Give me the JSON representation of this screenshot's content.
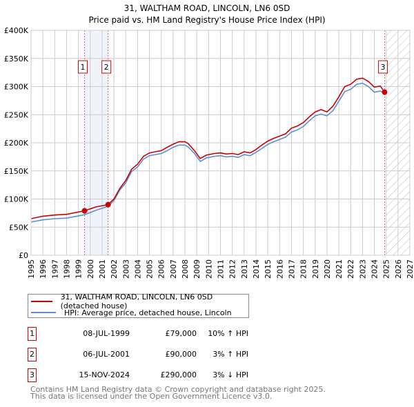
{
  "chart_data": {
    "type": "line",
    "title": "31, WALTHAM ROAD, LINCOLN, LN6 0SD",
    "subtitle": "Price paid vs. HM Land Registry's House Price Index (HPI)",
    "xlabel": "",
    "ylabel": "",
    "xlim": [
      1995,
      2027
    ],
    "ylim": [
      0,
      400000
    ],
    "y_ticks": [
      {
        "v": 0,
        "label": "£0"
      },
      {
        "v": 50000,
        "label": "£50K"
      },
      {
        "v": 100000,
        "label": "£100K"
      },
      {
        "v": 150000,
        "label": "£150K"
      },
      {
        "v": 200000,
        "label": "£200K"
      },
      {
        "v": 250000,
        "label": "£250K"
      },
      {
        "v": 300000,
        "label": "£300K"
      },
      {
        "v": 350000,
        "label": "£350K"
      },
      {
        "v": 400000,
        "label": "£400K"
      }
    ],
    "x_ticks": [
      "1995",
      "1996",
      "1997",
      "1998",
      "1999",
      "2000",
      "2001",
      "2002",
      "2003",
      "2004",
      "2005",
      "2006",
      "2007",
      "2008",
      "2009",
      "2010",
      "2011",
      "2012",
      "2013",
      "2014",
      "2015",
      "2016",
      "2017",
      "2018",
      "2019",
      "2020",
      "2021",
      "2022",
      "2023",
      "2024",
      "2025",
      "2026",
      "2027"
    ],
    "grid": true,
    "legend_placement": "below",
    "series": [
      {
        "name": "31, WALTHAM ROAD, LINCOLN, LN6 0SD (detached house)",
        "color": "#cc0000",
        "x": [
          1995,
          1996,
          1997,
          1998,
          1999.5,
          2000.5,
          2001.5,
          2002,
          2002.5,
          2003,
          2003.5,
          2004,
          2004.5,
          2005,
          2005.5,
          2006,
          2006.5,
          2007,
          2007.5,
          2008,
          2008.3,
          2008.8,
          2009.3,
          2009.8,
          2010.5,
          2011,
          2011.5,
          2012,
          2012.5,
          2013,
          2013.5,
          2014,
          2014.5,
          2015,
          2015.5,
          2016,
          2016.5,
          2017,
          2017.5,
          2018,
          2018.5,
          2019,
          2019.5,
          2020,
          2020.5,
          2021,
          2021.5,
          2022,
          2022.5,
          2023,
          2023.5,
          2024,
          2024.5,
          2024.87
        ],
        "values": [
          65000,
          69500,
          71500,
          72800,
          79000,
          86000,
          90000,
          100000,
          119000,
          133000,
          153000,
          162000,
          176000,
          182000,
          184000,
          186000,
          192000,
          197500,
          202000,
          202000,
          198000,
          186000,
          172000,
          178000,
          181000,
          182000,
          180000,
          181000,
          179000,
          184000,
          182000,
          188000,
          196000,
          203000,
          208000,
          212000,
          216000,
          226000,
          230000,
          236000,
          246000,
          255000,
          259000,
          255000,
          265000,
          282000,
          300000,
          304000,
          313000,
          315000,
          309000,
          299000,
          301000,
          290000
        ]
      },
      {
        "name": "HPI: Average price, detached house, Lincoln",
        "color": "#5b8fd4",
        "x": [
          1995,
          1996,
          1997,
          1998,
          1999.5,
          2000.5,
          2001.5,
          2002,
          2002.5,
          2003,
          2003.5,
          2004,
          2004.5,
          2005,
          2005.5,
          2006,
          2006.5,
          2007,
          2007.5,
          2008,
          2008.3,
          2008.8,
          2009.3,
          2009.8,
          2010.5,
          2011,
          2011.5,
          2012,
          2012.5,
          2013,
          2013.5,
          2014,
          2014.5,
          2015,
          2015.5,
          2016,
          2016.5,
          2017,
          2017.5,
          2018,
          2018.5,
          2019,
          2019.5,
          2020,
          2020.5,
          2021,
          2021.5,
          2022,
          2022.5,
          2023,
          2023.5,
          2024,
          2024.5,
          2024.87
        ],
        "values": [
          59000,
          63000,
          65000,
          66000,
          72000,
          80000,
          87000,
          97000,
          116000,
          129000,
          149000,
          157000,
          171000,
          177000,
          179000,
          181000,
          186000,
          192000,
          196000,
          196000,
          192000,
          181000,
          167000,
          173000,
          176000,
          177000,
          175000,
          176000,
          174000,
          179000,
          177000,
          183000,
          190000,
          197000,
          202000,
          206000,
          210000,
          219000,
          223000,
          229000,
          239000,
          248000,
          251000,
          248000,
          257000,
          274000,
          291000,
          295000,
          304000,
          306000,
          300000,
          290000,
          292000,
          288000
        ]
      }
    ],
    "sales": [
      {
        "num": "1",
        "x": 1999.52,
        "value": 79000
      },
      {
        "num": "2",
        "x": 2001.51,
        "value": 90000
      },
      {
        "num": "3",
        "x": 2024.87,
        "value": 290000
      }
    ],
    "forecast_from": 2025
  },
  "legend": {
    "red_label": "31, WALTHAM ROAD, LINCOLN, LN6 0SD (detached house)",
    "blue_label": "HPI: Average price, detached house, Lincoln"
  },
  "sales_table": [
    {
      "num": "1",
      "date": "08-JUL-1999",
      "price": "£79,000",
      "hpi": "10% ↑ HPI"
    },
    {
      "num": "2",
      "date": "06-JUL-2001",
      "price": "£90,000",
      "hpi": "3% ↑ HPI"
    },
    {
      "num": "3",
      "date": "15-NOV-2024",
      "price": "£290,000",
      "hpi": "3% ↓ HPI"
    }
  ],
  "footer": {
    "line1": "Contains HM Land Registry data © Crown copyright and database right 2025.",
    "line2": "This data is licensed under the Open Government Licence v3.0."
  }
}
